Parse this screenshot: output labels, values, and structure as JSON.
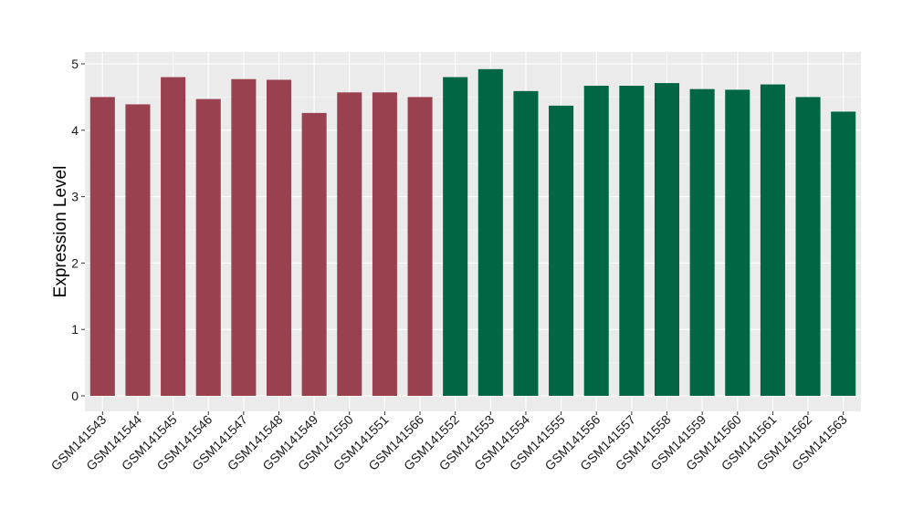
{
  "chart_data": {
    "type": "bar",
    "ylabel": "Expression Level",
    "xlabel": "",
    "ylim": [
      -0.25,
      5.1
    ],
    "yticks": [
      0,
      1,
      2,
      3,
      4,
      5
    ],
    "grid": true,
    "background": "#ebebeb",
    "categories": [
      "GSM141543",
      "GSM141544",
      "GSM141545",
      "GSM141546",
      "GSM141547",
      "GSM141548",
      "GSM141549",
      "GSM141550",
      "GSM141551",
      "GSM141566",
      "GSM141552",
      "GSM141553",
      "GSM141554",
      "GSM141555",
      "GSM141556",
      "GSM141557",
      "GSM141558",
      "GSM141559",
      "GSM141560",
      "GSM141561",
      "GSM141562",
      "GSM141563"
    ],
    "values": [
      4.5,
      4.39,
      4.8,
      4.47,
      4.77,
      4.76,
      4.26,
      4.57,
      4.57,
      4.5,
      4.8,
      4.92,
      4.59,
      4.37,
      4.67,
      4.67,
      4.71,
      4.62,
      4.61,
      4.69,
      4.5,
      4.28
    ],
    "groups": [
      0,
      0,
      0,
      0,
      0,
      0,
      0,
      0,
      0,
      0,
      1,
      1,
      1,
      1,
      1,
      1,
      1,
      1,
      1,
      1,
      1,
      1
    ],
    "group_colors": [
      "#9a4150",
      "#006643"
    ]
  }
}
